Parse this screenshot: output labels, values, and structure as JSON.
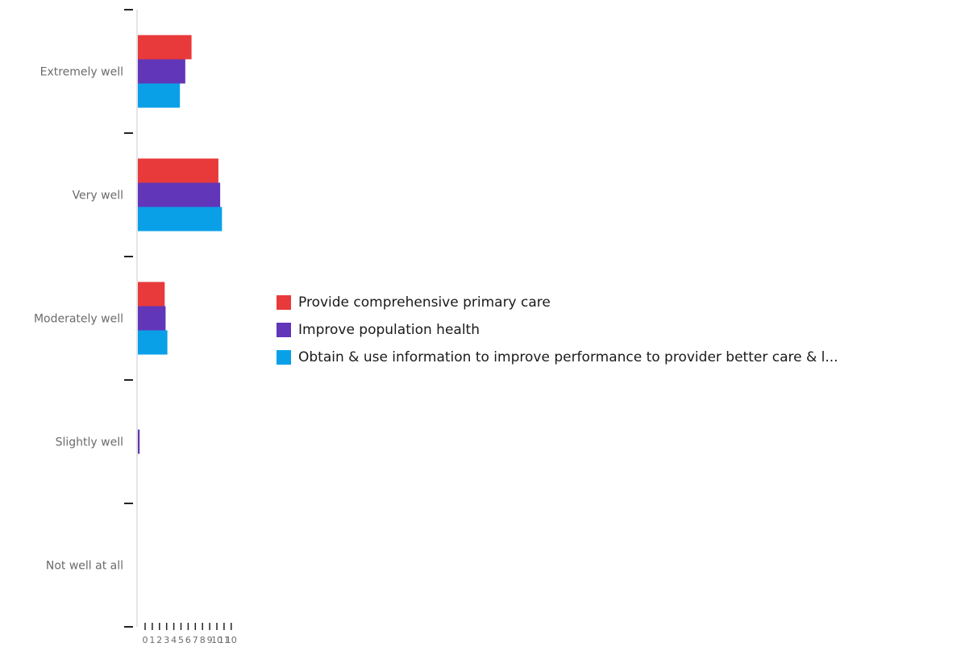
{
  "chart_data": {
    "type": "bar",
    "orientation": "horizontal",
    "categories": [
      "Extremely well",
      "Very well",
      "Moderately well",
      "Slightly well",
      "Not well at all"
    ],
    "series": [
      {
        "name": "Provide comprehensive primary care",
        "color": "#e83a3a",
        "values": [
          6,
          9,
          3,
          0,
          0
        ]
      },
      {
        "name": "Improve population health",
        "color": "#6136b8",
        "values": [
          5.3,
          9.2,
          3.1,
          0.2,
          0
        ]
      },
      {
        "name": "Obtain & use information to improve performance to provider better care & l...",
        "color": "#0aa0e8",
        "values": [
          4.7,
          9.4,
          3.3,
          0,
          0
        ]
      }
    ],
    "xticks": [
      "0",
      "1",
      "2",
      "3",
      "4",
      "5",
      "6",
      "7",
      "8",
      "9",
      "10",
      "11",
      "10"
    ],
    "xlim": [
      0,
      10
    ],
    "legend_position": "right",
    "grid": false
  }
}
